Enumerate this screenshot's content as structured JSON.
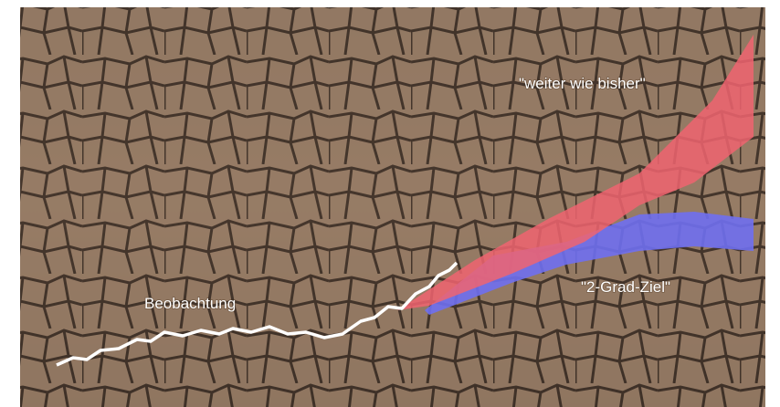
{
  "labels": {
    "scenario_high": "\"weiter wie bisher\"",
    "scenario_low": "\"2-Grad-Ziel\"",
    "observation": "Beobachtung"
  }
}
